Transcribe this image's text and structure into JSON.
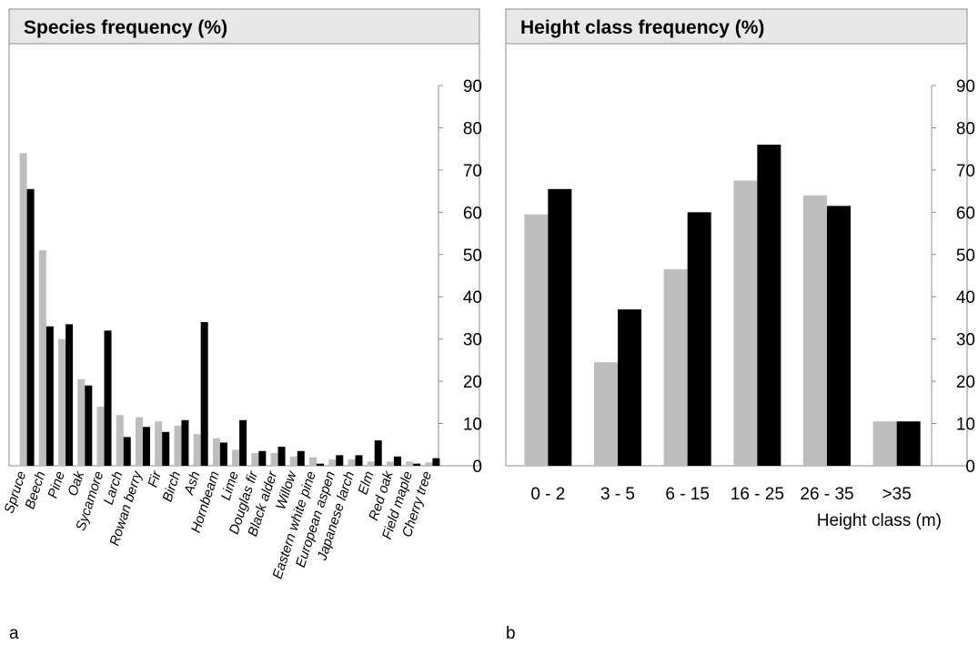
{
  "colors": {
    "series_gray": "#bdbdbd",
    "series_black": "#000000",
    "header_fill": "#e8e8e8",
    "frame": "#8c8c8c"
  },
  "chart_data": [
    {
      "type": "bar",
      "panel_label": "a",
      "title": "Species frequency (%)",
      "xlabel": "",
      "ylabel": "",
      "ylim": [
        0,
        90
      ],
      "yticks": [
        0,
        10,
        20,
        30,
        40,
        50,
        60,
        70,
        80,
        90
      ],
      "y_axis_side": "right",
      "grid": false,
      "legend": "none",
      "categories": [
        "Spruce",
        "Beech",
        "Pine",
        "Oak",
        "Sycamore",
        "Larch",
        "Rowan berry",
        "Fir",
        "Birch",
        "Ash",
        "Hornbeam",
        "Lime",
        "Douglas fir",
        "Black alder",
        "Willow",
        "Eastern white pine",
        "European aspen",
        "Japanese larch",
        "Elm",
        "Red oak",
        "Field maple",
        "Cherry tree"
      ],
      "series": [
        {
          "color": "#bdbdbd",
          "values": [
            74,
            51,
            30,
            20.5,
            14,
            12,
            11.5,
            10.5,
            9.5,
            7.5,
            6.5,
            3.8,
            3.0,
            3.0,
            2.2,
            2.0,
            1.5,
            1.5,
            1.0,
            1.0,
            1.0,
            0.8
          ]
        },
        {
          "color": "#000000",
          "values": [
            65.5,
            33,
            33.5,
            19,
            32,
            6.8,
            9.2,
            8.0,
            10.8,
            34,
            5.5,
            10.8,
            3.5,
            4.5,
            3.5,
            0.5,
            2.5,
            2.5,
            6.0,
            2.2,
            0.5,
            1.8
          ]
        }
      ]
    },
    {
      "type": "bar",
      "panel_label": "b",
      "title": "Height class frequency (%)",
      "xlabel": "Height class (m)",
      "ylabel": "",
      "ylim": [
        0,
        90
      ],
      "yticks": [
        0,
        10,
        20,
        30,
        40,
        50,
        60,
        70,
        80,
        90
      ],
      "y_axis_side": "right",
      "grid": false,
      "legend": "none",
      "categories": [
        "0 - 2",
        "3 - 5",
        "6 - 15",
        "16 - 25",
        "26 - 35",
        ">35"
      ],
      "series": [
        {
          "color": "#bdbdbd",
          "values": [
            59.5,
            24.5,
            46.5,
            67.5,
            64,
            10.5
          ]
        },
        {
          "color": "#000000",
          "values": [
            65.5,
            37,
            60,
            76,
            61.5,
            10.5
          ]
        }
      ]
    }
  ]
}
